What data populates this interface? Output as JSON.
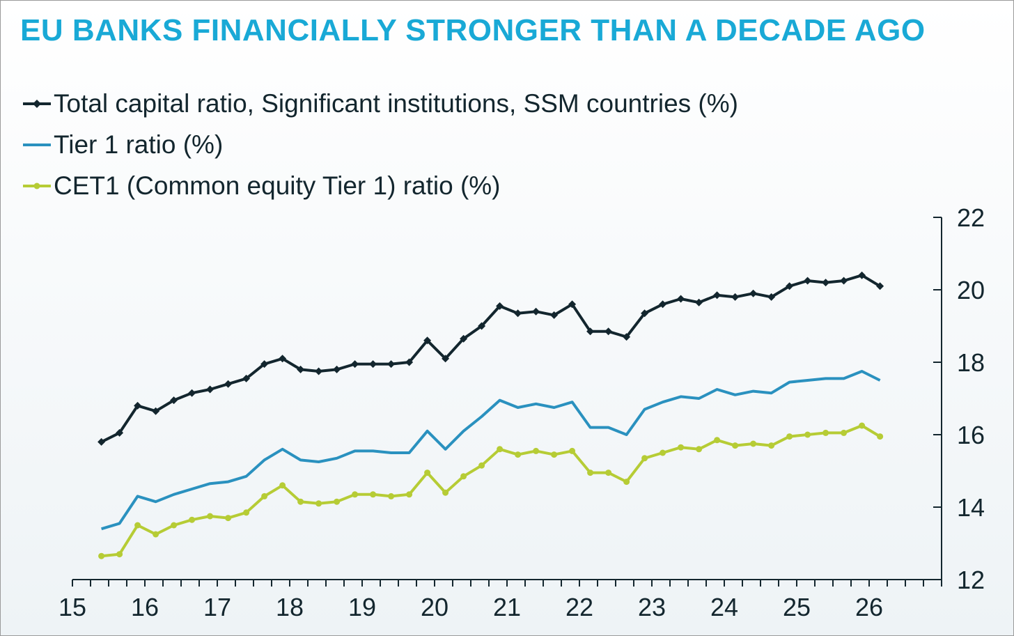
{
  "title": "EU BANKS FINANCIALLY STRONGER THAN A DECADE AGO",
  "chart_data": {
    "type": "line",
    "legend_position": "top-left",
    "grid": false,
    "xlim": [
      15,
      27
    ],
    "ylim": [
      12,
      22
    ],
    "x_ticks": [
      "15",
      "16",
      "17",
      "18",
      "19",
      "20",
      "21",
      "22",
      "23",
      "24",
      "25",
      "26"
    ],
    "y_ticks": [
      "12",
      "14",
      "16",
      "18",
      "20",
      "22"
    ],
    "y_axis_side": "right",
    "x": [
      15.4,
      15.65,
      15.9,
      16.15,
      16.4,
      16.65,
      16.9,
      17.15,
      17.4,
      17.65,
      17.9,
      18.15,
      18.4,
      18.65,
      18.9,
      19.15,
      19.4,
      19.65,
      19.9,
      20.15,
      20.4,
      20.65,
      20.9,
      21.15,
      21.4,
      21.65,
      21.9,
      22.15,
      22.4,
      22.65,
      22.9,
      23.15,
      23.4,
      23.65,
      23.9,
      24.15,
      24.4,
      24.65,
      24.9,
      25.15,
      25.4,
      25.65,
      25.9,
      26.15
    ],
    "series": [
      {
        "name": "Total capital ratio, Significant institutions, SSM countries (%)",
        "color": "#13262e",
        "marker": "diamond",
        "values": [
          15.8,
          16.05,
          16.8,
          16.65,
          16.95,
          17.15,
          17.25,
          17.4,
          17.55,
          17.95,
          18.1,
          17.8,
          17.75,
          17.8,
          17.95,
          17.95,
          17.95,
          18.0,
          18.6,
          18.1,
          18.65,
          19.0,
          19.55,
          19.35,
          19.4,
          19.3,
          19.6,
          18.85,
          18.85,
          18.7,
          19.35,
          19.6,
          19.75,
          19.65,
          19.85,
          19.8,
          19.9,
          19.8,
          20.1,
          20.25,
          20.2,
          20.25,
          20.4,
          20.1
        ]
      },
      {
        "name": "Tier 1 ratio (%)",
        "color": "#2a91bf",
        "marker": "none",
        "values": [
          13.4,
          13.55,
          14.3,
          14.15,
          14.35,
          14.5,
          14.65,
          14.7,
          14.85,
          15.3,
          15.6,
          15.3,
          15.25,
          15.35,
          15.55,
          15.55,
          15.5,
          15.5,
          16.1,
          15.6,
          16.1,
          16.5,
          16.95,
          16.75,
          16.85,
          16.75,
          16.9,
          16.2,
          16.2,
          16.0,
          16.7,
          16.9,
          17.05,
          17.0,
          17.25,
          17.1,
          17.2,
          17.15,
          17.45,
          17.5,
          17.55,
          17.55,
          17.75,
          17.5
        ]
      },
      {
        "name": "CET1 (Common equity Tier 1) ratio (%)",
        "color": "#b6cc35",
        "marker": "circle",
        "values": [
          12.65,
          12.7,
          13.5,
          13.25,
          13.5,
          13.65,
          13.75,
          13.7,
          13.85,
          14.3,
          14.6,
          14.15,
          14.1,
          14.15,
          14.35,
          14.35,
          14.3,
          14.35,
          14.95,
          14.4,
          14.85,
          15.15,
          15.6,
          15.45,
          15.55,
          15.45,
          15.55,
          14.95,
          14.95,
          14.7,
          15.35,
          15.5,
          15.65,
          15.6,
          15.85,
          15.7,
          15.75,
          15.7,
          15.95,
          16.0,
          16.05,
          16.05,
          16.25,
          15.95
        ]
      }
    ]
  }
}
